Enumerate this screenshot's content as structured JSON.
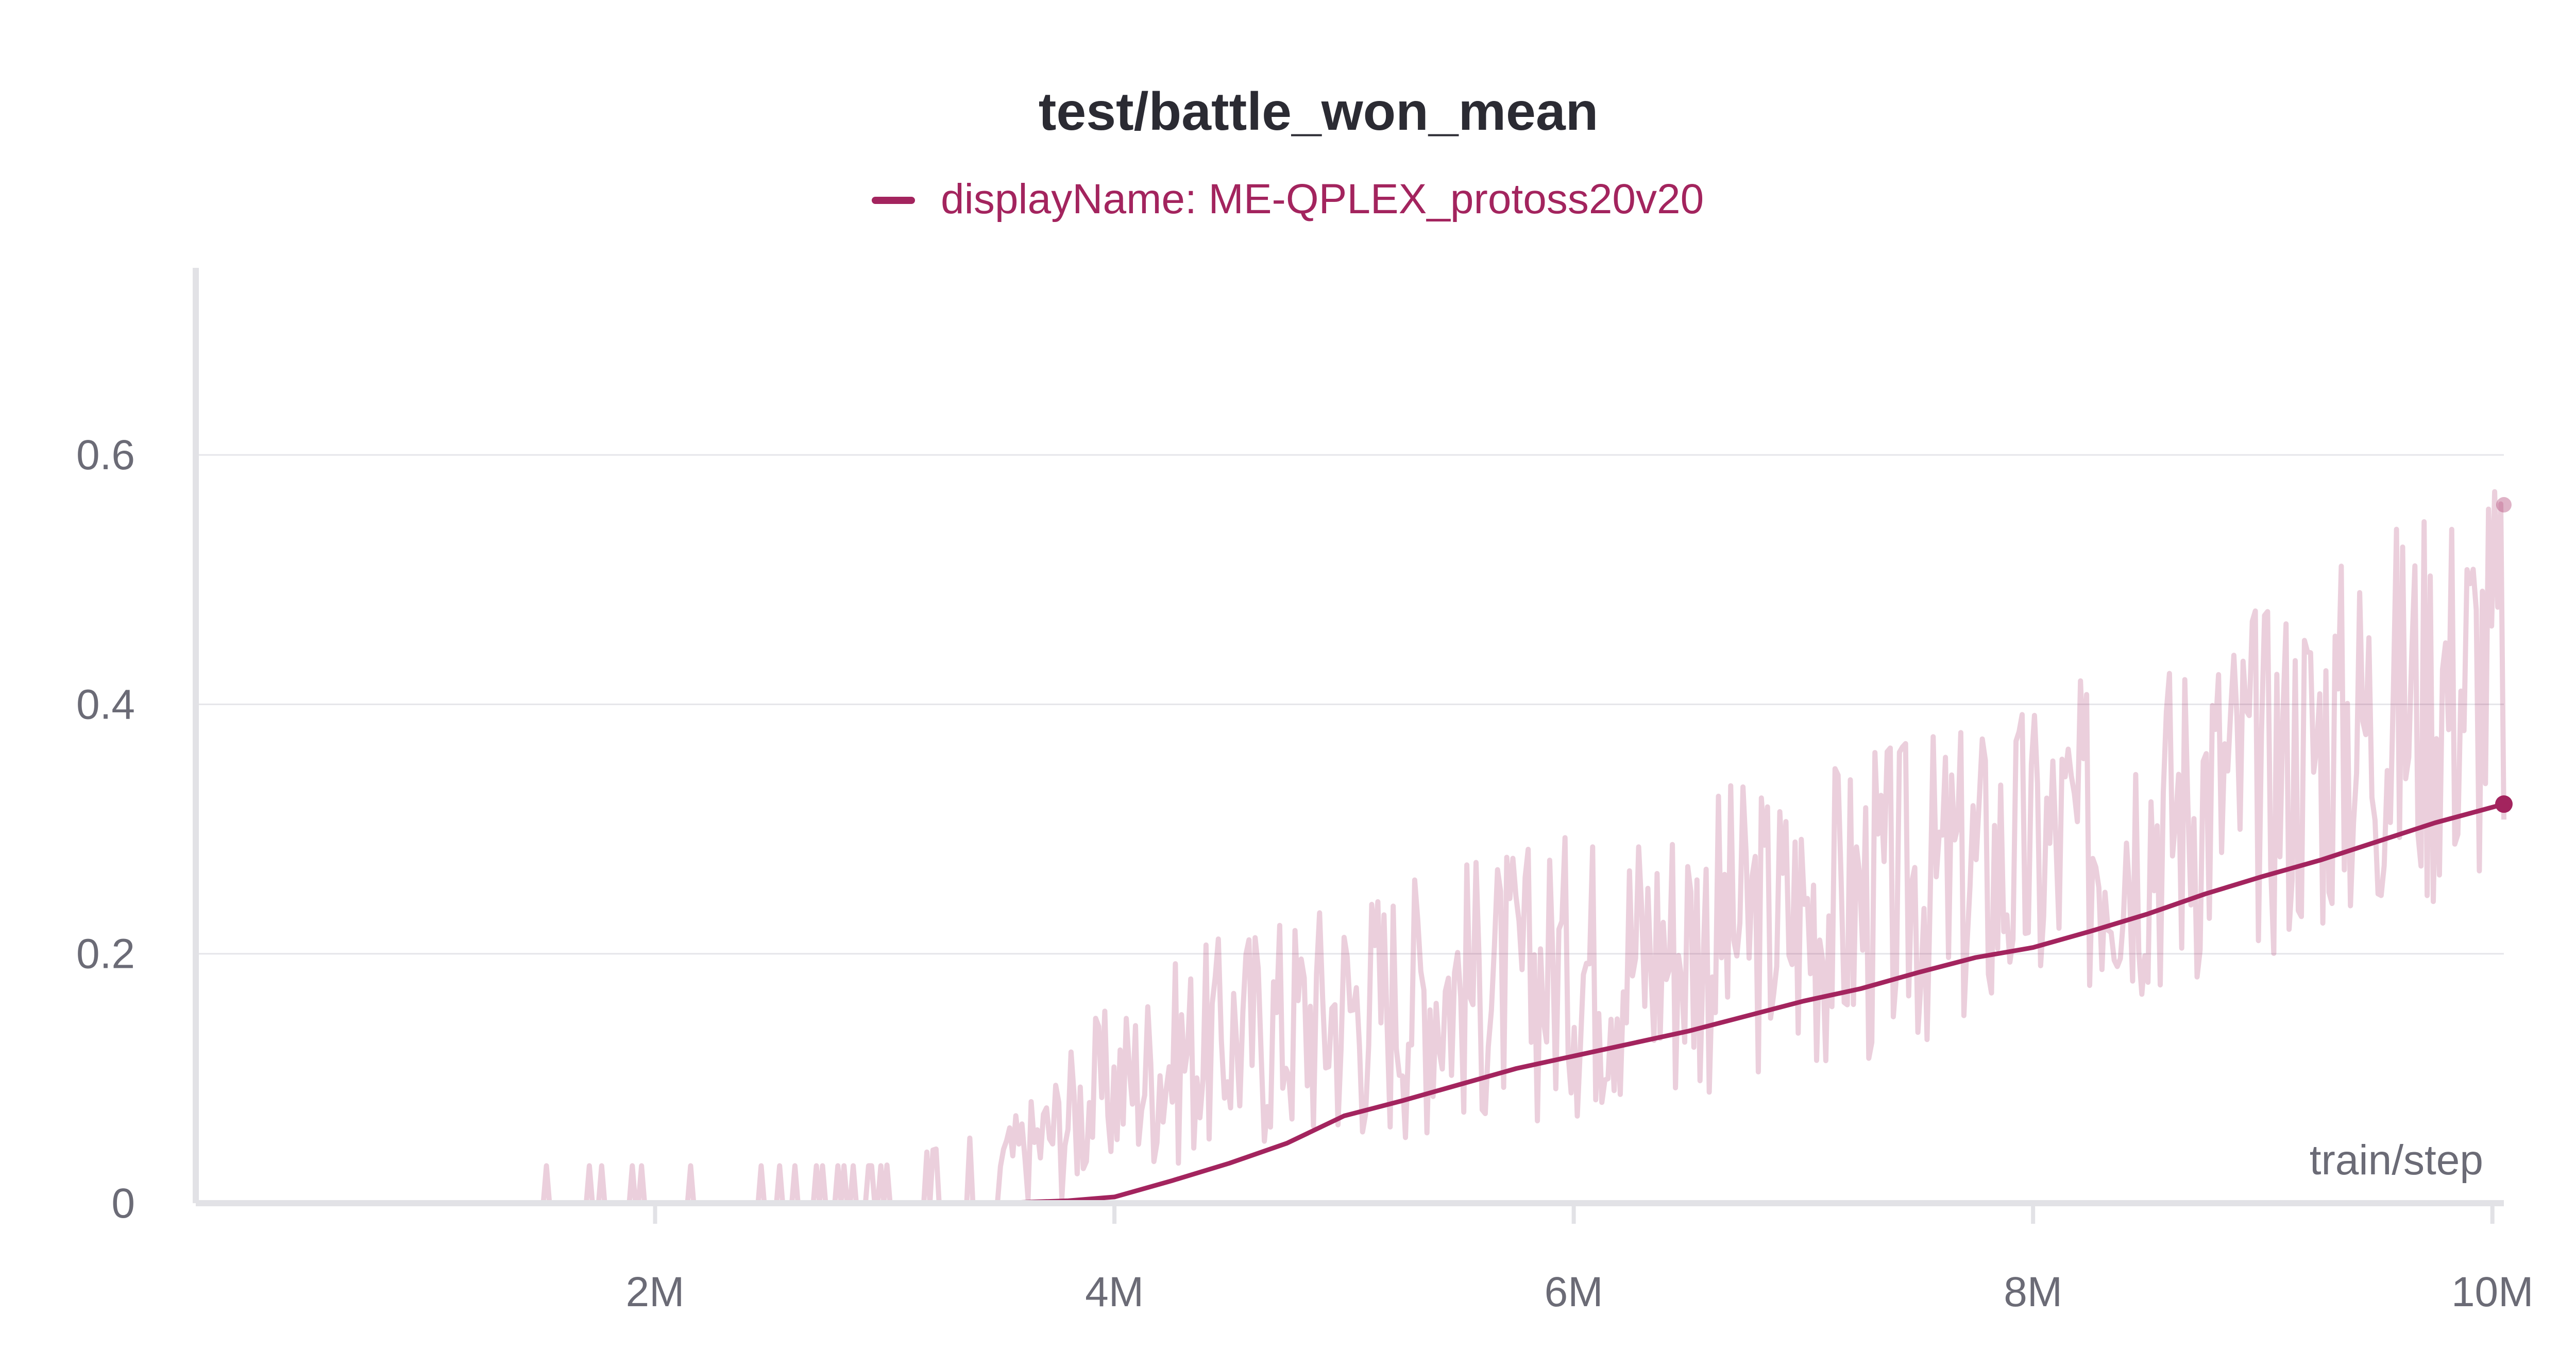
{
  "chart_data": {
    "type": "line",
    "title": "test/battle_won_mean",
    "xlabel": "train/step",
    "ylabel": "",
    "xlim": [
      0,
      10050000
    ],
    "ylim": [
      0,
      0.75
    ],
    "x_ticks": [
      2000000,
      4000000,
      6000000,
      8000000,
      10000000
    ],
    "x_tick_labels": [
      "2M",
      "4M",
      "6M",
      "8M",
      "10M"
    ],
    "y_ticks": [
      0,
      0.2,
      0.4,
      0.6
    ],
    "y_tick_labels": [
      "0",
      "0.2",
      "0.4",
      "0.6"
    ],
    "grid": true,
    "legend_position": "top-center",
    "series": [
      {
        "name": "displayName: ME-QPLEX_protoss20v20",
        "color": "#a3245e",
        "smoothed": {
          "x": [
            3500000,
            3800000,
            4000000,
            4250000,
            4500000,
            4750000,
            5000000,
            5250000,
            5500000,
            5750000,
            6000000,
            6250000,
            6500000,
            6750000,
            7000000,
            7250000,
            7500000,
            7750000,
            8000000,
            8250000,
            8500000,
            8750000,
            9000000,
            9250000,
            9500000,
            9750000,
            10050000
          ],
          "values": [
            0,
            0.002,
            0.005,
            0.018,
            0.032,
            0.048,
            0.07,
            0.082,
            0.095,
            0.108,
            0.118,
            0.128,
            0.138,
            0.15,
            0.162,
            0.172,
            0.185,
            0.197,
            0.205,
            0.218,
            0.232,
            0.248,
            0.262,
            0.275,
            0.29,
            0.305,
            0.32
          ]
        },
        "raw_envelope": {
          "x": [
            1500000,
            2000000,
            2500000,
            3000000,
            3500000,
            3700000,
            3900000,
            4000000,
            4300000,
            4600000,
            4900000,
            5200000,
            5500000,
            5800000,
            6100000,
            6400000,
            6700000,
            7000000,
            7300000,
            7600000,
            7900000,
            8200000,
            8500000,
            8800000,
            9100000,
            9400000,
            9700000,
            10050000
          ],
          "low": [
            0,
            0,
            0,
            0,
            0,
            0,
            0.01,
            0.02,
            0.03,
            0.04,
            0.04,
            0.05,
            0.06,
            0.06,
            0.07,
            0.07,
            0.09,
            0.1,
            0.1,
            0.12,
            0.13,
            0.15,
            0.16,
            0.18,
            0.2,
            0.21,
            0.23,
            0.25
          ],
          "high": [
            0.03,
            0.03,
            0.03,
            0.03,
            0.06,
            0.1,
            0.15,
            0.16,
            0.2,
            0.23,
            0.25,
            0.27,
            0.28,
            0.29,
            0.31,
            0.33,
            0.34,
            0.35,
            0.37,
            0.38,
            0.4,
            0.42,
            0.44,
            0.47,
            0.5,
            0.53,
            0.57,
            0.6
          ]
        },
        "last_raw_value": 0.56,
        "last_smoothed_value": 0.32
      }
    ]
  }
}
